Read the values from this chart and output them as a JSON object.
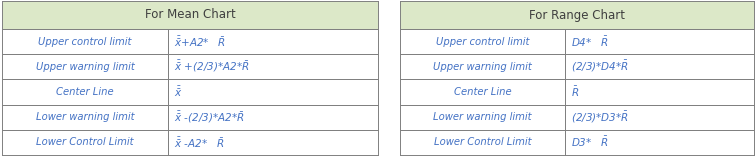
{
  "header_bg": "#dce8c8",
  "header_text_color": "#404040",
  "row_text_color": "#4472c4",
  "border_color": "#808080",
  "mean_header": "For Mean Chart",
  "range_header": "For Range Chart",
  "mean_rows": [
    [
      "Upper control limit",
      "$\\mathregular{\\bar{\\bar{x}}}$+A2*   $\\bar{R}$"
    ],
    [
      "Upper warning limit",
      "$\\mathregular{\\bar{\\bar{x}}}$ +(2/3)*A2*$\\bar{R}$"
    ],
    [
      "Center Line",
      "$\\mathregular{\\bar{\\bar{x}}}$"
    ],
    [
      "Lower warning limit",
      "$\\mathregular{\\bar{\\bar{x}}}$ -(2/3)*A2*$\\bar{R}$"
    ],
    [
      "Lower Control Limit",
      "$\\mathregular{\\bar{\\bar{x}}}$ -A2*   $\\bar{R}$"
    ]
  ],
  "range_rows": [
    [
      "Upper control limit",
      "D4*   $\\bar{R}$"
    ],
    [
      "Upper warning limit",
      "(2/3)*D4*$\\bar{R}$"
    ],
    [
      "Center Line",
      "$\\bar{R}$"
    ],
    [
      "Lower warning limit",
      "(2/3)*D3*$\\bar{R}$"
    ],
    [
      "Lower Control Limit",
      "D3*   $\\bar{R}$"
    ]
  ],
  "fig_width": 7.56,
  "fig_height": 1.56,
  "dpi": 100
}
